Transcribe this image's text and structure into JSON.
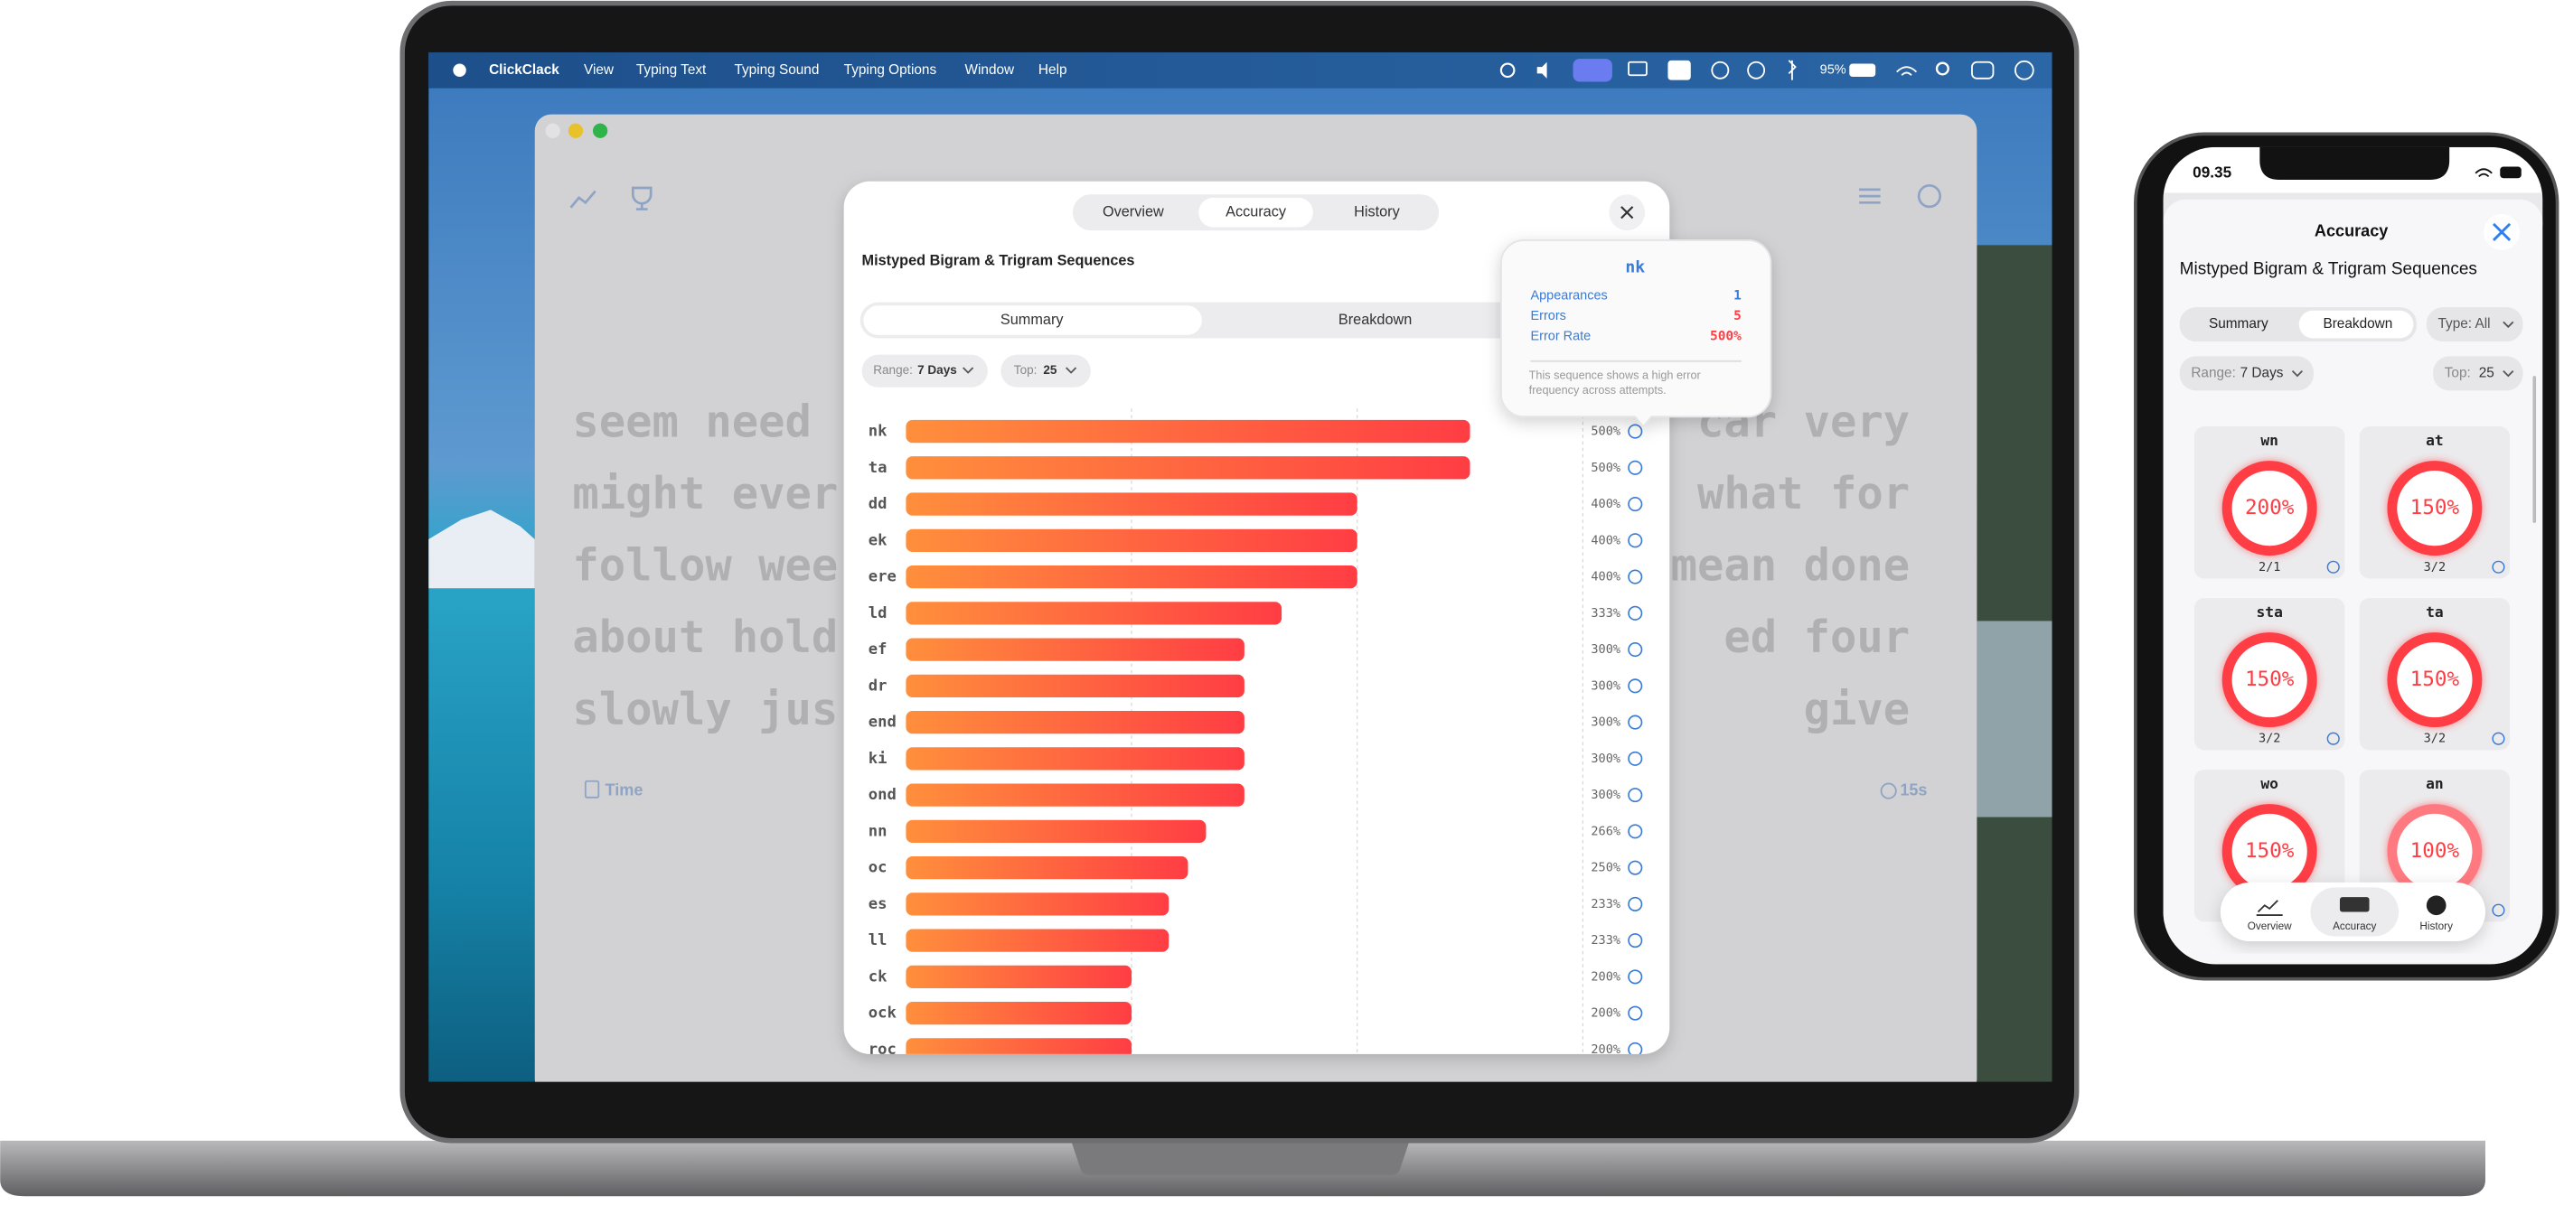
{
  "menu_bar": {
    "app": "ClickClack",
    "items": [
      "View",
      "Typing Text",
      "Typing Sound",
      "Typing Options",
      "Window",
      "Help"
    ],
    "battery": "95%"
  },
  "typing_area": {
    "left_fragments": [
      "seem need",
      "might ever",
      "follow wee",
      "about hold",
      "slowly jus"
    ],
    "right_fragments": [
      "car very",
      "what for",
      "mean done",
      "ed four",
      "give"
    ],
    "mode": "Time",
    "timer": "15s"
  },
  "modal": {
    "tabs": [
      "Overview",
      "Accuracy",
      "History"
    ],
    "title": "Mistyped Bigram & Trigram Sequences",
    "subtabs": [
      "Summary",
      "Breakdown"
    ],
    "range_label": "Range:",
    "range_value": "7 Days",
    "top_label": "Top:",
    "top_value": "25"
  },
  "chart_data": {
    "type": "bar",
    "orientation": "horizontal",
    "categories": [
      "nk",
      "ta",
      "dd",
      "ek",
      "ere",
      "ld",
      "ef",
      "dr",
      "end",
      "ki",
      "ond",
      "nn",
      "oc",
      "es",
      "ll",
      "ck",
      "ock",
      "roc"
    ],
    "values": [
      500,
      500,
      400,
      400,
      400,
      333,
      300,
      300,
      300,
      300,
      300,
      266,
      250,
      233,
      233,
      200,
      200,
      200
    ],
    "value_labels": [
      "500%",
      "500%",
      "400%",
      "400%",
      "400%",
      "333%",
      "300%",
      "300%",
      "300%",
      "300%",
      "300%",
      "266%",
      "250%",
      "233%",
      "233%",
      "200%",
      "200%",
      "200%"
    ],
    "colors": [
      "#ff8f3c",
      "#ff3d44"
    ],
    "xlim": [
      0,
      600
    ],
    "grid": true,
    "grid_values": [
      200,
      400,
      600
    ]
  },
  "tooltip": {
    "title": "nk",
    "rows": [
      {
        "label": "Appearances",
        "value": 1
      },
      {
        "label": "Errors",
        "value": 5
      },
      {
        "label": "Error Rate",
        "value": "500%"
      }
    ],
    "note": "This sequence shows a high error frequency across attempts."
  },
  "phone": {
    "time": "09.35",
    "header": "Accuracy",
    "title": "Mistyped Bigram & Trigram Sequences",
    "subtabs": [
      "Summary",
      "Breakdown"
    ],
    "type_filter": "Type: All",
    "range_label": "Range:",
    "range_value": "7 Days",
    "top_label": "Top:",
    "top_value": "25",
    "cards": [
      {
        "label": "wn",
        "rate": "200%",
        "ratio": "2/1"
      },
      {
        "label": "at",
        "rate": "150%",
        "ratio": "3/2"
      },
      {
        "label": "sta",
        "rate": "150%",
        "ratio": "3/2"
      },
      {
        "label": "ta",
        "rate": "150%",
        "ratio": "3/2"
      },
      {
        "label": "wo",
        "rate": "150%"
      },
      {
        "label": "an",
        "rate": "100%"
      }
    ],
    "nav": [
      "Overview",
      "Accuracy",
      "History"
    ]
  }
}
